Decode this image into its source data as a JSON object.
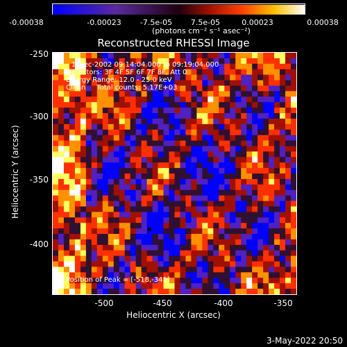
{
  "colorbar": {
    "ticks": [
      "-0.00038",
      "-0.00023",
      "-7.5e-05",
      "7.5e-05",
      "0.00023",
      "0.00038"
    ],
    "unit_label": "(photons cm⁻² s⁻¹ asec⁻²)"
  },
  "title": "Reconstructed RHESSI Image",
  "overlay": {
    "line1": "1-Dec-2002 09:14:04.000 to 09:19:04.000",
    "line2": "Detectors: 3F 4F 5F 6F 7F 8F, Att 0",
    "line3": "Energy Range: 12.0 - 25.0 keV",
    "line4": "Clean     Total counts: 5.17E+03",
    "peak": "Position of Peak = [-518,-341]"
  },
  "axes": {
    "xlabel": "Heliocentric X (arcsec)",
    "ylabel": "Heliocentric Y (arcsec)",
    "xticks": [
      "-500",
      "-450",
      "-400",
      "-350"
    ],
    "yticks": [
      "-250",
      "-300",
      "-350",
      "-400"
    ]
  },
  "timestamp": "3-May-2022 20:50",
  "colors": {
    "background": "#000000",
    "colormap": [
      "#0000ff",
      "#5020c0",
      "#301030",
      "#a01000",
      "#ff3000",
      "#ff9000",
      "#ffff60",
      "#ffffff"
    ]
  }
}
